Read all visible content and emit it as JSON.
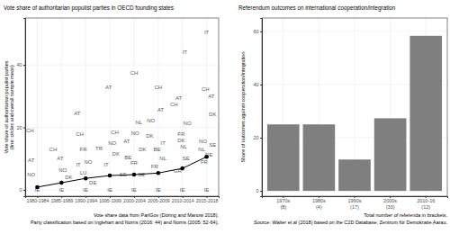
{
  "chart_data": [
    {
      "type": "scatter",
      "title": "Vote share of authoritarian populist parties in OECD founding states",
      "ylabel": "Vote share of authoritarian populist parties\n(line: circles and overall sample mean)",
      "annotations": [
        "Vote share data from ParlGov (Döring and Manow 2018).",
        "Party classification based on Inglehart and Norris (2016: 44) and Norris (2005: 52-64)."
      ],
      "xlim": [
        0.5,
        8.5
      ],
      "xticks": [
        {
          "value": 1,
          "label": "1980-1984"
        },
        {
          "value": 2,
          "label": "1985-1989"
        },
        {
          "value": 3,
          "label": "1990-1994"
        },
        {
          "value": 4,
          "label": "1995-1999"
        },
        {
          "value": 5,
          "label": "2000-2004"
        },
        {
          "value": 6,
          "label": "2005-2009"
        },
        {
          "value": 7,
          "label": "2010-2014"
        },
        {
          "value": 8,
          "label": "2015-2018"
        }
      ],
      "ylim": [
        -2,
        55
      ],
      "yticks": [
        0,
        20,
        40
      ],
      "grid": true,
      "series": [
        {
          "type": "text",
          "marker": "text",
          "color": "#595959",
          "x": [
            0.7,
            0.75,
            0.75,
            1.0,
            1.65,
            1.95,
            2.05,
            2.3,
            2.0,
            2.65,
            2.75,
            2.9,
            3.55,
            3.1,
            2.7,
            2.9,
            3.3,
            3.0,
            3.95,
            4.2,
            4.1,
            4.25,
            3.85,
            4.55,
            4.0,
            5.0,
            5.2,
            5.05,
            4.7,
            5.35,
            4.75,
            5.0,
            5.3,
            5.0,
            6.0,
            6.1,
            5.7,
            5.65,
            6.2,
            5.95,
            6.2,
            5.85,
            6.0,
            7.1,
            6.85,
            6.65,
            7.2,
            6.95,
            6.95,
            7.05,
            7.15,
            6.8,
            7.0,
            8.0,
            7.95,
            8.2,
            8.25,
            7.85,
            8.25,
            7.8,
            8.1,
            7.9,
            8.0
          ],
          "values": [
            19,
            9.5,
            5,
            0,
            13,
            10,
            6.5,
            4,
            0,
            24.5,
            18,
            13,
            13.4,
            9,
            8.2,
            5.5,
            2.3,
            0,
            33,
            18.6,
            15,
            11.7,
            8,
            5,
            0,
            37.4,
            21.7,
            18.3,
            15.7,
            13.1,
            10.5,
            8.6,
            5,
            0,
            32.9,
            25.7,
            22.3,
            17.4,
            15,
            12.9,
            10,
            7.5,
            0,
            44,
            29.4,
            27.4,
            21.4,
            18,
            16,
            14,
            10,
            6,
            0,
            50.3,
            32.3,
            30,
            24.3,
            15.7,
            14.3,
            13,
            11.4,
            9,
            0
          ],
          "labels": [
            "CH",
            "AT",
            "NO",
            "IE",
            "CH",
            "AT",
            "NO",
            "DK",
            "IE",
            "AT",
            "CH",
            "FR",
            "TR",
            "NO",
            "IT",
            "LU",
            "DE",
            "IE",
            "AT",
            "CH",
            "NO",
            "DK",
            "IT",
            "SE",
            "IE",
            "CH",
            "NL",
            "NO",
            "AT",
            "DK",
            "BE",
            "FR",
            "SE",
            "IE",
            "CH",
            "AT",
            "NO",
            "DK",
            "IT",
            "BE",
            "NL",
            "FR",
            "IE",
            "IT",
            "AT",
            "CH",
            "NO",
            "FR",
            "DK",
            "NL",
            "SE",
            "GR",
            "IE",
            "IT",
            "CH",
            "AT",
            "DK",
            "NO",
            "SE",
            "NL",
            "DE",
            "FR",
            "IE"
          ]
        },
        {
          "type": "line",
          "marker": "circle",
          "line_style": "solid",
          "color": "#000000",
          "x": [
            1,
            2,
            3,
            4,
            5,
            6,
            7,
            8
          ],
          "values": [
            0.9,
            2.3,
            3.7,
            4.6,
            4.9,
            5.4,
            6.9,
            10.6
          ]
        }
      ]
    },
    {
      "type": "bar",
      "title": "Referendum outcomes on international cooperation/integration",
      "ylabel": "Share of outcomes against cooperation/integration",
      "annotations": [
        "Total number of referenda in brackets.",
        "Source: Walter et al (2018) based on the C2D Database, Zentrum für Demokratie Aarau."
      ],
      "categories": [
        "1970s\n(8)",
        "1980s\n(4)",
        "1990s\n(17)",
        "2000s\n(33)",
        "2010-16\n(12)"
      ],
      "values": [
        25,
        25,
        11.8,
        27.3,
        58.3
      ],
      "color": "#7f7f7f",
      "ylim": [
        -2,
        65
      ],
      "yticks": [
        0,
        20,
        40,
        60
      ],
      "grid": true
    }
  ]
}
